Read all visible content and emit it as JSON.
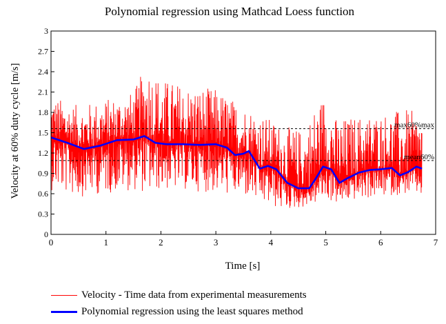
{
  "chart_data": {
    "type": "line",
    "title": "Polynomial regression using Mathcad Loess function",
    "xlabel": "Time [s]",
    "ylabel": "Velocity at 60% duty cycle [m/s]",
    "xlim": [
      0,
      7
    ],
    "ylim": [
      0,
      3
    ],
    "x_ticks": [
      "0",
      "1",
      "2",
      "3",
      "4",
      "5",
      "6",
      "7"
    ],
    "y_ticks": [
      "0",
      "0.3",
      "0.6",
      "0.9",
      "1.2",
      "1.5",
      "1.8",
      "2.1",
      "2.4",
      "2.7",
      "3"
    ],
    "grid": false,
    "series": [
      {
        "name": "Velocity - Time data from experimental measurements",
        "color": "#ff0000",
        "envelope": {
          "x": [
            0,
            0.5,
            1.0,
            1.5,
            1.75,
            2.0,
            2.5,
            3.0,
            3.5,
            3.8,
            4.2,
            4.6,
            4.8,
            5.0,
            5.2,
            5.5,
            6.0,
            6.5,
            6.75
          ],
          "low": [
            0.65,
            0.55,
            0.6,
            0.65,
            0.6,
            0.65,
            0.65,
            0.6,
            0.55,
            0.45,
            0.35,
            0.4,
            0.45,
            0.5,
            0.45,
            0.5,
            0.55,
            0.6,
            0.55
          ],
          "high": [
            2.05,
            1.9,
            2.0,
            2.1,
            2.55,
            2.3,
            2.2,
            2.15,
            1.9,
            1.8,
            1.6,
            1.55,
            1.9,
            2.1,
            1.7,
            1.75,
            1.8,
            1.85,
            1.75
          ]
        }
      },
      {
        "name": "Polynomial regression using the least squares method",
        "color": "#0000ff",
        "x": [
          0,
          0.3,
          0.6,
          0.9,
          1.2,
          1.5,
          1.7,
          1.9,
          2.1,
          2.4,
          2.7,
          3.0,
          3.2,
          3.35,
          3.5,
          3.6,
          3.8,
          3.95,
          4.1,
          4.3,
          4.5,
          4.7,
          4.8,
          4.95,
          5.1,
          5.25,
          5.4,
          5.6,
          5.8,
          6.0,
          6.2,
          6.35,
          6.5,
          6.65,
          6.75
        ],
        "y": [
          1.43,
          1.35,
          1.26,
          1.31,
          1.39,
          1.4,
          1.45,
          1.35,
          1.33,
          1.33,
          1.32,
          1.33,
          1.28,
          1.17,
          1.19,
          1.23,
          0.97,
          1.01,
          0.96,
          0.76,
          0.68,
          0.68,
          0.8,
          1.0,
          0.96,
          0.76,
          0.83,
          0.91,
          0.95,
          0.96,
          0.98,
          0.87,
          0.92,
          1.0,
          0.97
        ]
      }
    ],
    "reference_lines": [
      {
        "y": 1.56,
        "style": "dashed",
        "label": "max60%max"
      },
      {
        "y": 1.09,
        "style": "dashed",
        "label": "mean60%"
      }
    ],
    "legend_placement": "bottom"
  },
  "colors": {
    "data": "#ff0000",
    "fit": "#0000ff",
    "axis": "#000000",
    "reference": "#000000"
  }
}
